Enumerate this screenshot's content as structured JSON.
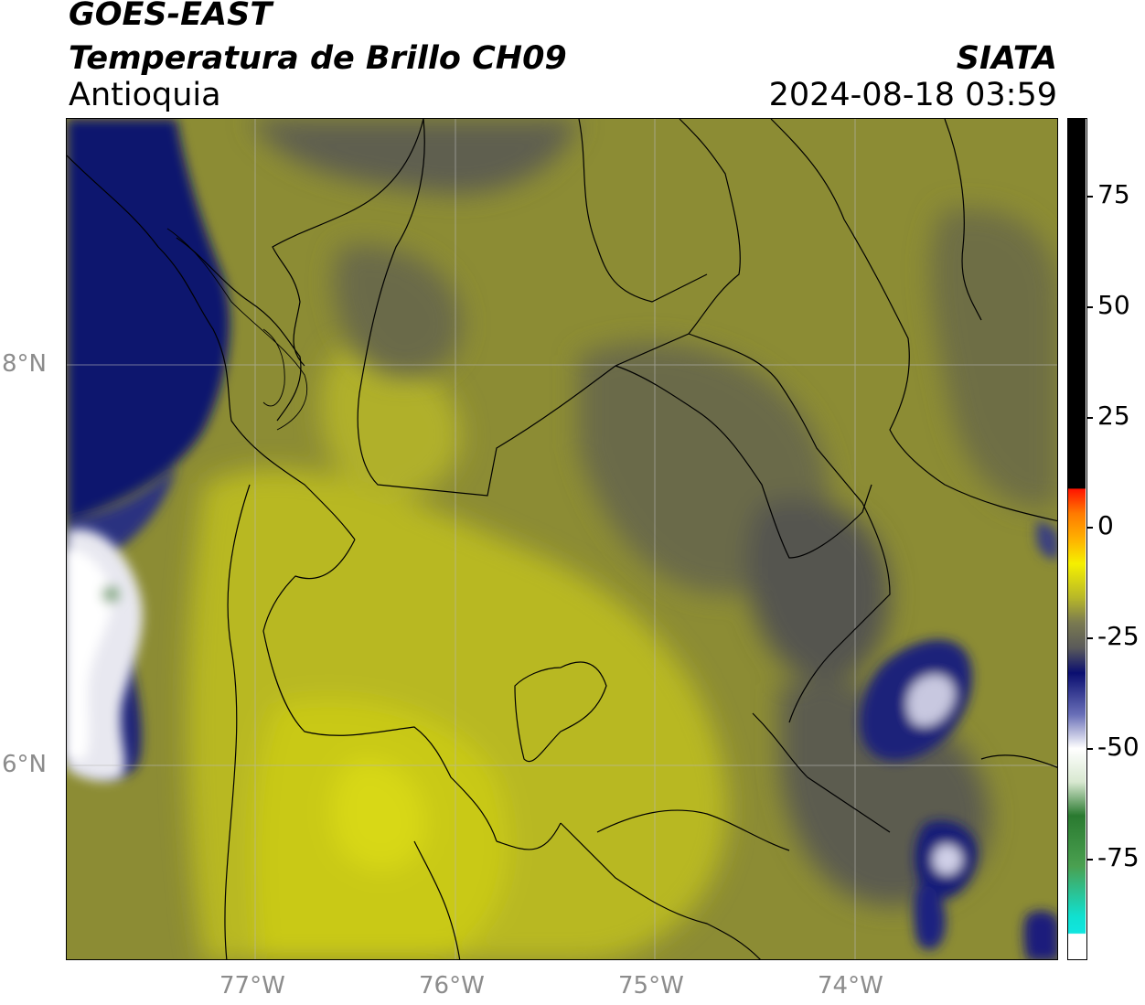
{
  "header": {
    "line1": "GOES-EAST",
    "line2": "Temperatura de Brillo CH09",
    "org": "SIATA",
    "region": "Antioquia",
    "datetime": "2024-08-18 03:59"
  },
  "map": {
    "lat_labels": [
      "8°N",
      "6°N"
    ],
    "lon_labels": [
      "77°W",
      "76°W",
      "75°W",
      "74°W"
    ]
  },
  "colorbar": {
    "ticks": [
      "75",
      "50",
      "25",
      "0",
      "-25",
      "-50",
      "-75"
    ],
    "colors": {
      "hot": "#000000",
      "red": "#ff1a00",
      "orange": "#ff9a00",
      "yellow": "#e6e600",
      "olive": "#9a9a32",
      "gray": "#5a5a52",
      "navy": "#0a1070",
      "white": "#f4f4f4",
      "green": "#3a8a2a",
      "cyan": "#10e0d0"
    }
  }
}
